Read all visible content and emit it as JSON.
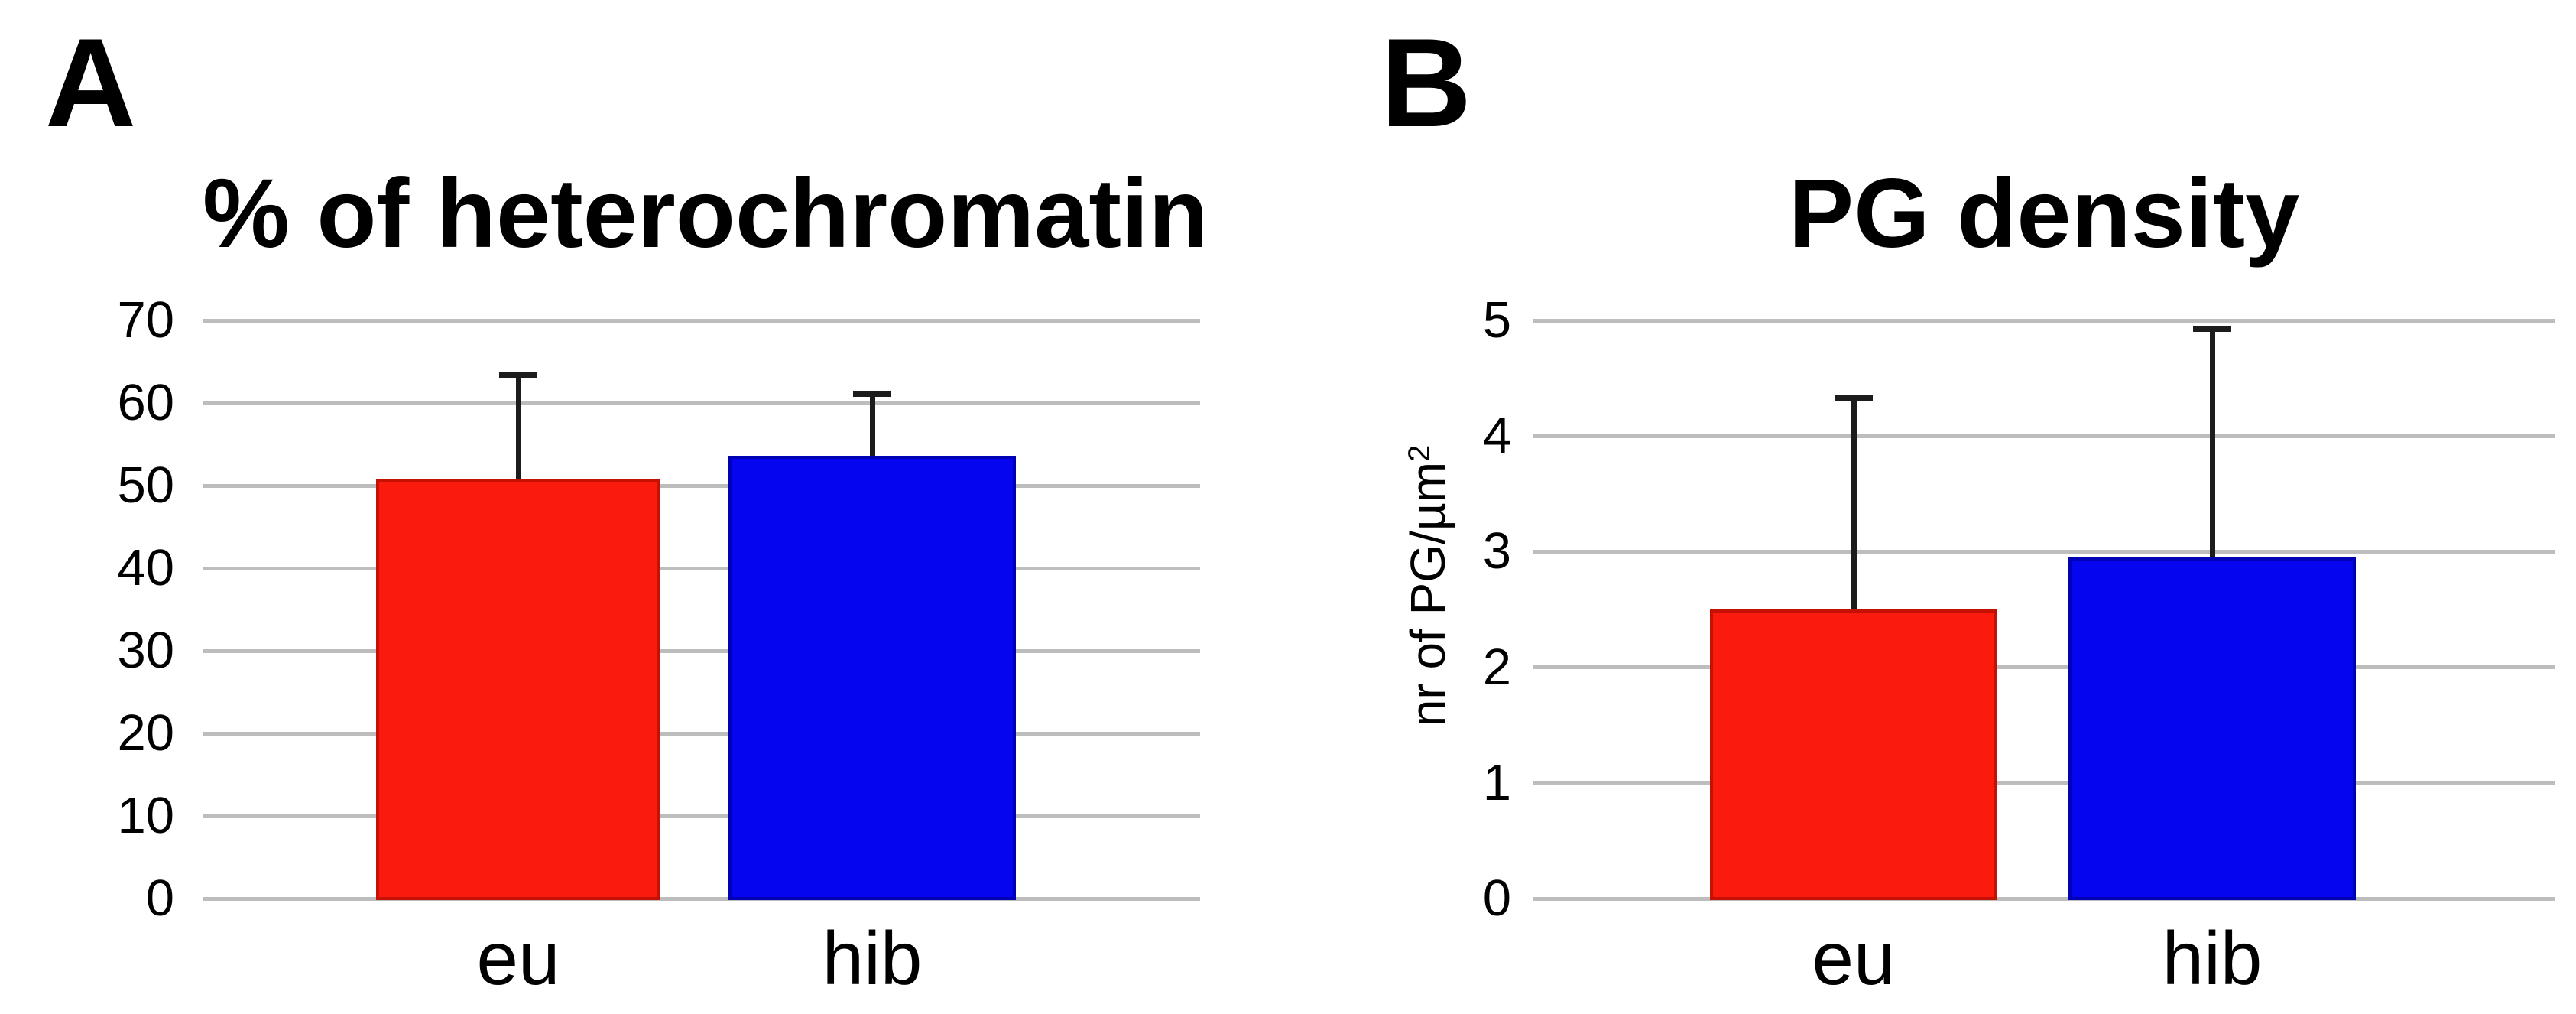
{
  "figure": {
    "background": "#ffffff",
    "text_color": "#000000",
    "gridline_color": "#bdbdbd",
    "error_bar_color": "#1c1c1c"
  },
  "chart_data": [
    {
      "type": "bar",
      "panel_letter": "A",
      "title": "% of heterochromatin",
      "categories": [
        "eu",
        "hib"
      ],
      "values": [
        50.8,
        53.6
      ],
      "errors_plus": [
        12.6,
        7.5
      ],
      "yticks": [
        0,
        10,
        20,
        30,
        40,
        50,
        60,
        70
      ],
      "ylim": [
        0,
        70
      ],
      "xlabel": "",
      "ylabel": "",
      "grid": true,
      "legend": false,
      "bar_colors": [
        "#fa1b0e",
        "#0505f0"
      ],
      "bar_border_colors": [
        "#c41104",
        "#0000b4"
      ]
    },
    {
      "type": "bar",
      "panel_letter": "B",
      "title": "PG density",
      "categories": [
        "eu",
        "hib"
      ],
      "values": [
        2.5,
        2.95
      ],
      "errors_plus": [
        1.83,
        1.98
      ],
      "yticks": [
        0,
        1,
        2,
        3,
        4,
        5
      ],
      "ylim": [
        0,
        5
      ],
      "xlabel": "",
      "ylabel": "nr of PG/µm",
      "ylabel_sup": "2",
      "grid": true,
      "legend": false,
      "bar_colors": [
        "#fa1b0e",
        "#0505f0"
      ],
      "bar_border_colors": [
        "#c41104",
        "#0000b4"
      ]
    }
  ]
}
